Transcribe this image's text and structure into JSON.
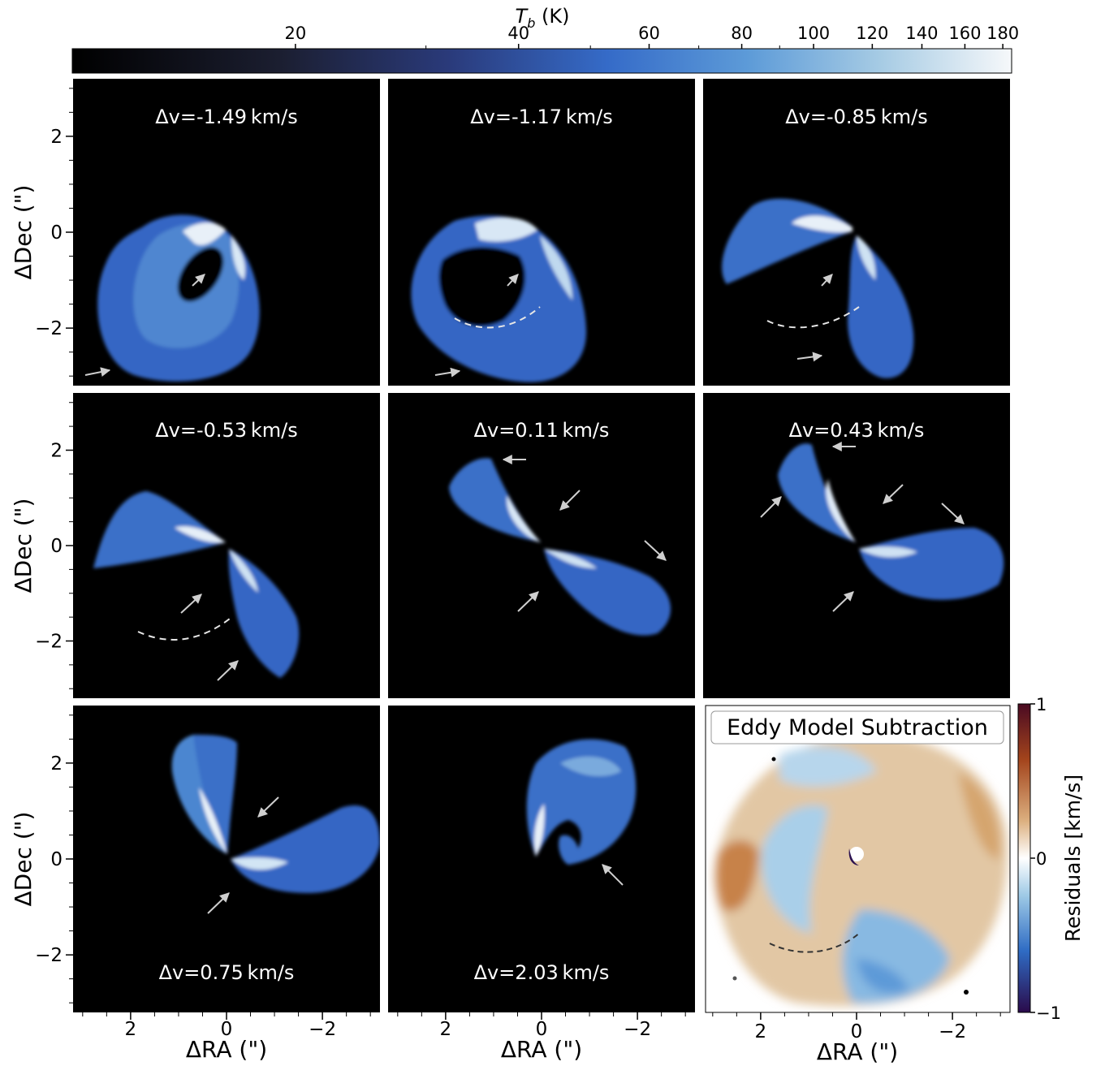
{
  "colorbar": {
    "label_var": "T",
    "label_sub": "b",
    "label_unit": " (K)",
    "ticks": [
      "20",
      "40",
      "60",
      "80",
      "100",
      "120",
      "140",
      "160",
      "180"
    ],
    "tick_values": [
      20,
      40,
      60,
      80,
      100,
      120,
      140,
      160,
      180
    ],
    "range": [
      10,
      185
    ],
    "scale": "log",
    "colors": [
      "#000000",
      "#252a44",
      "#2f58b6",
      "#4f8bd4",
      "#9cc5e4",
      "#f4f7fa"
    ]
  },
  "residual_colorbar": {
    "label": "Residuals [km/s]",
    "ticks": [
      "1",
      "0",
      "−1"
    ],
    "tick_values": [
      1,
      0,
      -1
    ],
    "colors": [
      "#3a0a4a",
      "#1f56b8",
      "#8fc1e3",
      "#ffffff",
      "#e6c095",
      "#b85a1f",
      "#5a0a12"
    ]
  },
  "axes": {
    "xlabel": "ΔRA (\")",
    "ylabel": "ΔDec (\")",
    "xticks": [
      "2",
      "0",
      "−2"
    ],
    "yticks": [
      "2",
      "0",
      "−2"
    ],
    "xlim": [
      3.2,
      -3.2
    ],
    "ylim": [
      -3.2,
      3.2
    ],
    "residual_xticks": [
      "2",
      "0",
      "−2"
    ]
  },
  "panels": [
    {
      "label": "Δv=-1.49 km/s"
    },
    {
      "label": "Δv=-1.17 km/s"
    },
    {
      "label": "Δv=-0.85 km/s"
    },
    {
      "label": "Δv=-0.53 km/s"
    },
    {
      "label": "Δv=0.11 km/s"
    },
    {
      "label": "Δv=0.43 km/s"
    },
    {
      "label": "Δv=0.75 km/s"
    },
    {
      "label": "Δv=2.03 km/s"
    },
    {
      "label": "Eddy Model Subtraction"
    }
  ],
  "chart_data": {
    "type": "heatmap",
    "description_channels": [
      "-1.49",
      "-1.17",
      "-0.85",
      "-0.53",
      "0.11",
      "0.43",
      "0.75",
      "2.03"
    ],
    "unit": "km/s",
    "colorbar_quantity": "T_b (K)",
    "residual_quantity": "Residuals [km/s]",
    "residual_range": [
      -1,
      1
    ]
  }
}
